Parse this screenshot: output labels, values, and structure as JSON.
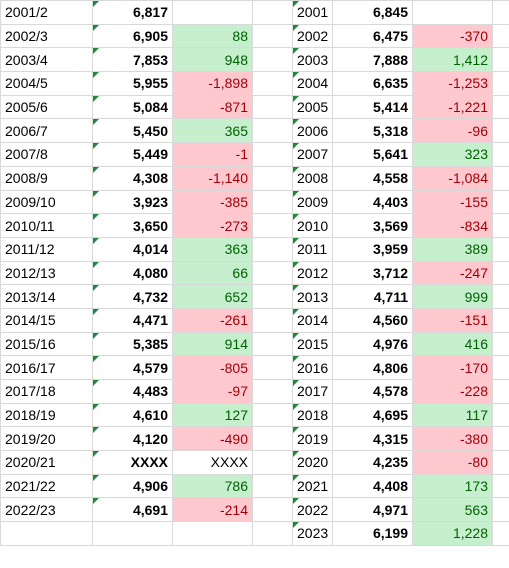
{
  "left": {
    "rows": [
      [
        "2001/2",
        "6,817",
        null
      ],
      [
        "2002/3",
        "6,905",
        "88"
      ],
      [
        "2003/4",
        "7,853",
        "948"
      ],
      [
        "2004/5",
        "5,955",
        "-1,898"
      ],
      [
        "2005/6",
        "5,084",
        "-871"
      ],
      [
        "2006/7",
        "5,450",
        "365"
      ],
      [
        "2007/8",
        "5,449",
        "-1"
      ],
      [
        "2008/9",
        "4,308",
        "-1,140"
      ],
      [
        "2009/10",
        "3,923",
        "-385"
      ],
      [
        "2010/11",
        "3,650",
        "-273"
      ],
      [
        "2011/12",
        "4,014",
        "363"
      ],
      [
        "2012/13",
        "4,080",
        "66"
      ],
      [
        "2013/14",
        "4,732",
        "652"
      ],
      [
        "2014/15",
        "4,471",
        "-261"
      ],
      [
        "2015/16",
        "5,385",
        "914"
      ],
      [
        "2016/17",
        "4,579",
        "-805"
      ],
      [
        "2017/18",
        "4,483",
        "-97"
      ],
      [
        "2018/19",
        "4,610",
        "127"
      ],
      [
        "2019/20",
        "4,120",
        "-490"
      ],
      [
        "2020/21",
        "XXXX",
        "XXXX"
      ],
      [
        "2021/22",
        "4,906",
        "786"
      ],
      [
        "2022/23",
        "4,691",
        "-214"
      ]
    ]
  },
  "right": {
    "rows": [
      [
        "2001",
        "6,845",
        null
      ],
      [
        "2002",
        "6,475",
        "-370"
      ],
      [
        "2003",
        "7,888",
        "1,412"
      ],
      [
        "2004",
        "6,635",
        "-1,253"
      ],
      [
        "2005",
        "5,414",
        "-1,221"
      ],
      [
        "2006",
        "5,318",
        "-96"
      ],
      [
        "2007",
        "5,641",
        "323"
      ],
      [
        "2008",
        "4,558",
        "-1,084"
      ],
      [
        "2009",
        "4,403",
        "-155"
      ],
      [
        "2010",
        "3,569",
        "-834"
      ],
      [
        "2011",
        "3,959",
        "389"
      ],
      [
        "2012",
        "3,712",
        "-247"
      ],
      [
        "2013",
        "4,711",
        "999"
      ],
      [
        "2014",
        "4,560",
        "-151"
      ],
      [
        "2015",
        "4,976",
        "416"
      ],
      [
        "2016",
        "4,806",
        "-170"
      ],
      [
        "2017",
        "4,578",
        "-228"
      ],
      [
        "2018",
        "4,695",
        "117"
      ],
      [
        "2019",
        "4,315",
        "-380"
      ],
      [
        "2020",
        "4,235",
        "-80"
      ],
      [
        "2021",
        "4,408",
        "173"
      ],
      [
        "2022",
        "4,971",
        "563"
      ],
      [
        "2023",
        "6,199",
        "1,228"
      ]
    ]
  }
}
